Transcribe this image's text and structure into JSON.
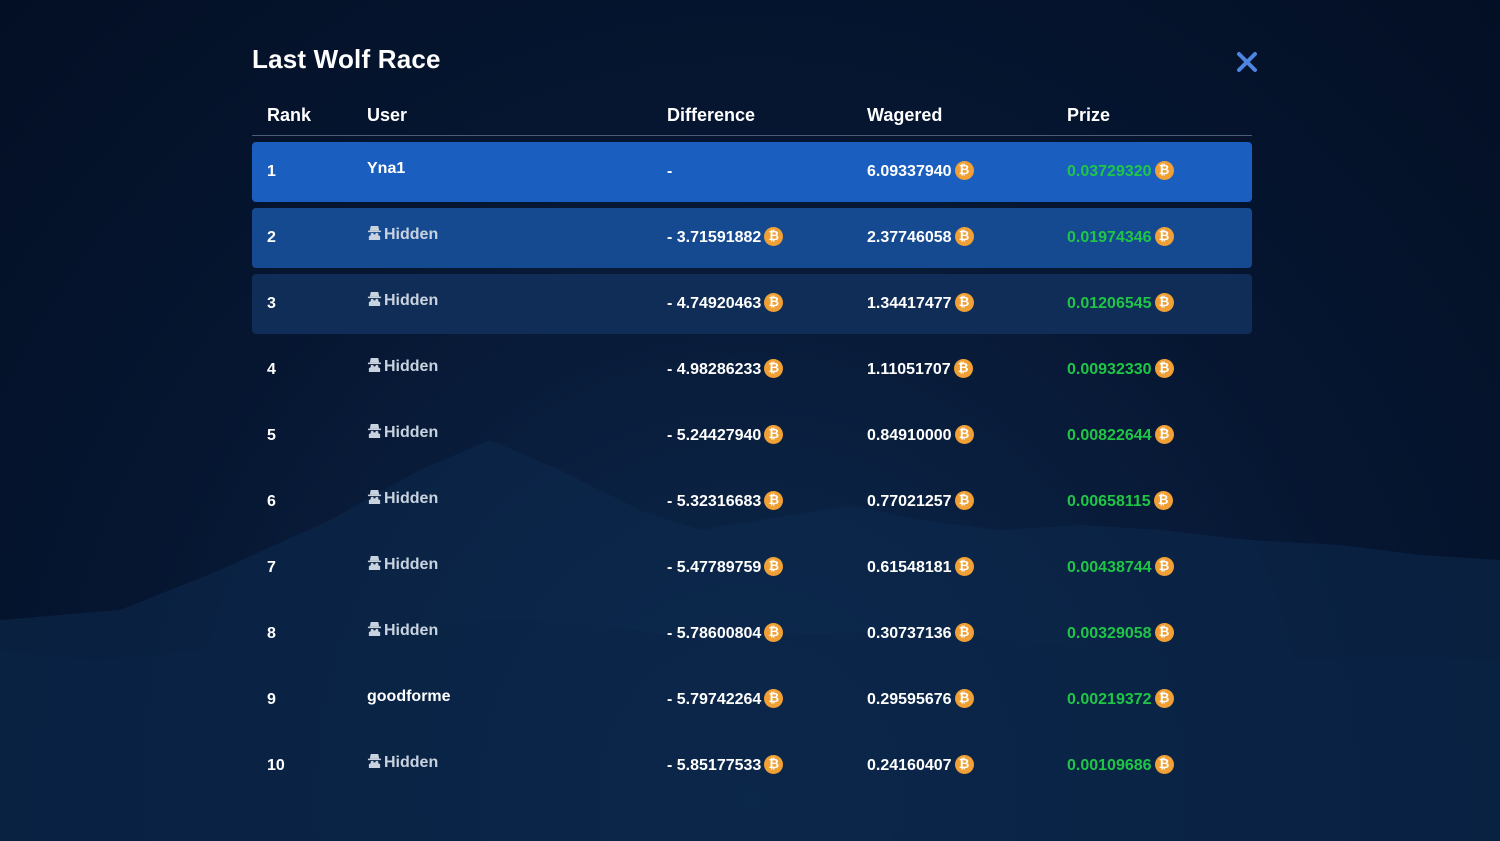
{
  "modal": {
    "title": "Last Wolf Race",
    "close_icon": "close-icon"
  },
  "table": {
    "headers": {
      "rank": "Rank",
      "user": "User",
      "difference": "Difference",
      "wagered": "Wagered",
      "prize": "Prize"
    },
    "rows": [
      {
        "rank": "1",
        "user": "Yna1",
        "hidden": false,
        "difference": "-",
        "wagered": "6.09337940",
        "prize": "0.03729320"
      },
      {
        "rank": "2",
        "user": "Hidden",
        "hidden": true,
        "difference": "- 3.71591882",
        "wagered": "2.37746058",
        "prize": "0.01974346"
      },
      {
        "rank": "3",
        "user": "Hidden",
        "hidden": true,
        "difference": "- 4.74920463",
        "wagered": "1.34417477",
        "prize": "0.01206545"
      },
      {
        "rank": "4",
        "user": "Hidden",
        "hidden": true,
        "difference": "- 4.98286233",
        "wagered": "1.11051707",
        "prize": "0.00932330"
      },
      {
        "rank": "5",
        "user": "Hidden",
        "hidden": true,
        "difference": "- 5.24427940",
        "wagered": "0.84910000",
        "prize": "0.00822644"
      },
      {
        "rank": "6",
        "user": "Hidden",
        "hidden": true,
        "difference": "- 5.32316683",
        "wagered": "0.77021257",
        "prize": "0.00658115"
      },
      {
        "rank": "7",
        "user": "Hidden",
        "hidden": true,
        "difference": "- 5.47789759",
        "wagered": "0.61548181",
        "prize": "0.00438744"
      },
      {
        "rank": "8",
        "user": "Hidden",
        "hidden": true,
        "difference": "- 5.78600804",
        "wagered": "0.30737136",
        "prize": "0.00329058"
      },
      {
        "rank": "9",
        "user": "goodforme",
        "hidden": false,
        "difference": "- 5.79742264",
        "wagered": "0.29595676",
        "prize": "0.00219372"
      },
      {
        "rank": "10",
        "user": "Hidden",
        "hidden": true,
        "difference": "- 5.85177533",
        "wagered": "0.24160407",
        "prize": "0.00109686"
      }
    ]
  },
  "icons": {
    "currency": "bitcoin-icon",
    "hidden_user": "incognito-icon",
    "coin_glyph": "₿"
  },
  "colors": {
    "prize": "#1fc646",
    "coin": "#f0a035",
    "close": "#4d86e0",
    "row_first": "#1a5fbf",
    "row_second": "#154a91",
    "row_third": "#0f2d56"
  }
}
